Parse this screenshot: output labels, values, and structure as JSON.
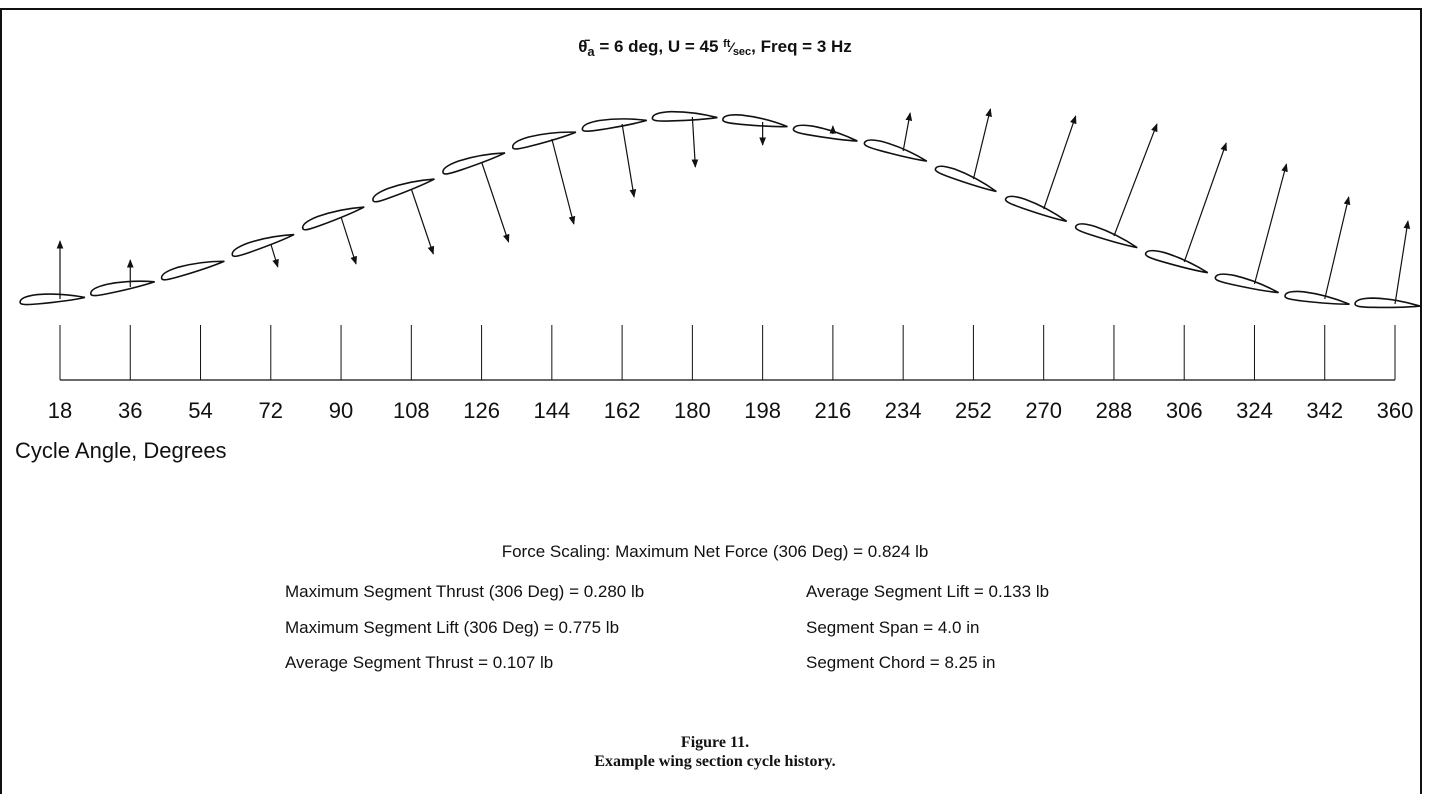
{
  "title_parts": [
    "θ̄",
    "a",
    " = 6 deg, U = 45 ",
    "ft",
    "⁄",
    "sec",
    ", Freq = 3 Hz"
  ],
  "angles": [
    "18",
    "36",
    "54",
    "72",
    "90",
    "108",
    "126",
    "144",
    "162",
    "180",
    "198",
    "216",
    "234",
    "252",
    "270",
    "288",
    "306",
    "324",
    "342",
    "360"
  ],
  "axis_label": "Cycle Angle, Degrees",
  "force_scaling": "Force Scaling: Maximum Net Force (306 Deg) = 0.824 lb",
  "stats_left": [
    "Maximum Segment Thrust (306 Deg) = 0.280 lb",
    "Maximum Segment Lift (306 Deg) = 0.775 lb",
    "Average Segment Thrust = 0.107 lb"
  ],
  "stats_right": [
    "Average Segment Lift = 0.133 lb",
    "Segment Span = 4.0 in",
    "Segment Chord = 8.25 in"
  ],
  "caption": [
    "Figure 11.",
    "Example wing section cycle history."
  ]
}
